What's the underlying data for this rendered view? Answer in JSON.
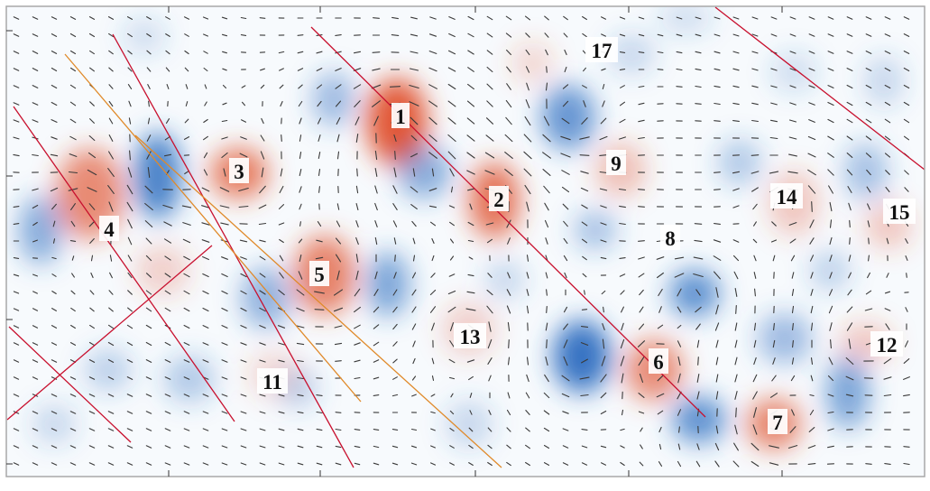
{
  "figure": {
    "description_colors": {
      "positive": "#e0502a",
      "negative": "#2a6cc0",
      "frame": "#a8a8a8",
      "line_red": "#c8102e",
      "line_orange": "#e08a2a",
      "tick": "#333333"
    },
    "vortex_labels": [
      {
        "id": "1",
        "text": "1"
      },
      {
        "id": "2",
        "text": "2"
      },
      {
        "id": "3",
        "text": "3"
      },
      {
        "id": "4",
        "text": "4"
      },
      {
        "id": "5",
        "text": "5"
      },
      {
        "id": "6",
        "text": "6"
      },
      {
        "id": "7",
        "text": "7"
      },
      {
        "id": "8",
        "text": "8"
      },
      {
        "id": "9",
        "text": "9"
      },
      {
        "id": "11",
        "text": "11"
      },
      {
        "id": "12",
        "text": "12"
      },
      {
        "id": "13",
        "text": "13"
      },
      {
        "id": "14",
        "text": "14"
      },
      {
        "id": "15",
        "text": "15"
      },
      {
        "id": "17",
        "text": "17"
      }
    ]
  }
}
